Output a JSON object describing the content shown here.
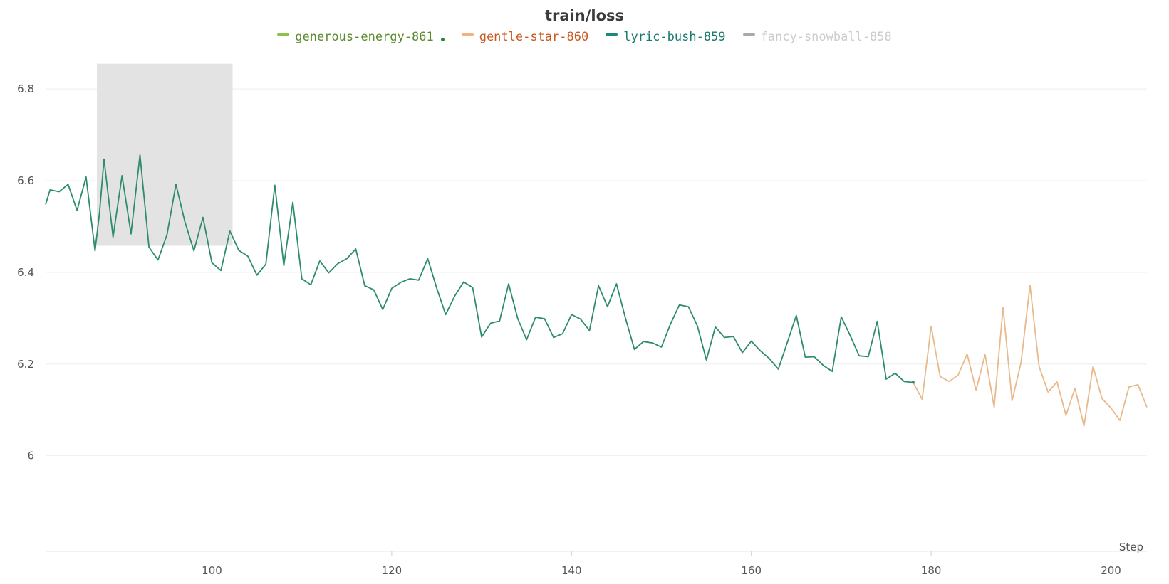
{
  "chart_data": {
    "type": "line",
    "title": "train/loss",
    "xlabel": "Step",
    "ylabel": "",
    "xlim": [
      81.5,
      204
    ],
    "ylim": [
      5.88,
      6.87
    ],
    "x_ticks": [
      100,
      120,
      140,
      160,
      180,
      200
    ],
    "y_ticks": [
      6,
      6.2,
      6.4,
      6.6,
      6.8
    ],
    "y_tick_labels": [
      "6",
      "6.2",
      "6.4",
      "6.6",
      "6.8"
    ],
    "x_tick_labels": [
      "100",
      "120",
      "140",
      "160",
      "180",
      "200"
    ],
    "grid": true,
    "legend_position": "top",
    "legend": [
      {
        "name": "generous-energy-861",
        "color": "#8bc34a",
        "text_color": "#5a8a2a",
        "marker": "dot",
        "marker_color": "#1e8c2e"
      },
      {
        "name": "gentle-star-860",
        "color": "#f4b183",
        "text_color": "#c9591f"
      },
      {
        "name": "lyric-bush-859",
        "color": "#1a8a7a",
        "text_color": "#1a7a6e"
      },
      {
        "name": "fancy-snowball-858",
        "color": "#aaaaaa",
        "text_color": "#cccccc"
      }
    ],
    "highlight_region": {
      "x": [
        87.2,
        102.3
      ],
      "y": [
        6.458,
        6.855
      ],
      "color": "#e3e3e3"
    },
    "series": [
      {
        "name": "lyric-bush-859",
        "color": "#2e8b6e",
        "x": [
          81.5,
          82,
          83,
          84,
          85,
          86,
          87,
          87.5,
          88,
          89,
          90,
          91,
          92,
          93,
          94,
          95,
          96,
          97,
          98,
          99,
          100,
          101,
          102,
          103,
          104,
          105,
          106,
          107,
          108,
          109,
          110,
          111,
          112,
          113,
          114,
          115,
          116,
          117,
          118,
          119,
          120,
          121,
          122,
          123,
          124,
          125,
          126,
          127,
          128,
          129,
          130,
          131,
          132,
          133,
          134,
          135,
          136,
          137,
          138,
          139,
          140,
          141,
          142,
          143,
          144,
          145,
          146,
          147,
          148,
          149,
          150,
          151,
          152,
          153,
          154,
          155,
          156,
          157,
          158,
          159,
          160,
          161,
          162,
          163,
          164,
          165,
          166,
          167,
          168,
          169,
          170,
          171,
          172,
          173,
          174,
          175,
          176,
          177,
          178
        ],
        "y": [
          6.548,
          6.58,
          6.576,
          6.592,
          6.535,
          6.608,
          6.447,
          6.53,
          6.647,
          6.477,
          6.611,
          6.484,
          6.656,
          6.455,
          6.427,
          6.482,
          6.592,
          6.51,
          6.447,
          6.52,
          6.421,
          6.404,
          6.49,
          6.448,
          6.435,
          6.394,
          6.418,
          6.59,
          6.415,
          6.553,
          6.386,
          6.373,
          6.425,
          6.399,
          6.419,
          6.43,
          6.451,
          6.371,
          6.362,
          6.319,
          6.365,
          6.378,
          6.386,
          6.383,
          6.43,
          6.366,
          6.308,
          6.348,
          6.379,
          6.367,
          6.259,
          6.289,
          6.294,
          6.375,
          6.3,
          6.253,
          6.302,
          6.299,
          6.258,
          6.266,
          6.308,
          6.298,
          6.273,
          6.371,
          6.325,
          6.375,
          6.3,
          6.232,
          6.249,
          6.246,
          6.237,
          6.287,
          6.329,
          6.325,
          6.283,
          6.209,
          6.281,
          6.258,
          6.26,
          6.225,
          6.25,
          6.229,
          6.212,
          6.189,
          6.247,
          6.306,
          6.215,
          6.216,
          6.197,
          6.184,
          6.303,
          6.262,
          6.218,
          6.216,
          6.293,
          6.167,
          6.18,
          6.162,
          6.16
        ]
      },
      {
        "name": "gentle-star-860",
        "color": "#e8b98a",
        "x": [
          178,
          179,
          180,
          181,
          182,
          183,
          184,
          185,
          186,
          187,
          188,
          189,
          190,
          191,
          192,
          193,
          194,
          195,
          196,
          197,
          198,
          199,
          200,
          201,
          202,
          203,
          204
        ],
        "y": [
          6.16,
          6.123,
          6.282,
          6.173,
          6.162,
          6.176,
          6.222,
          6.143,
          6.221,
          6.106,
          6.323,
          6.12,
          6.203,
          6.372,
          6.195,
          6.139,
          6.161,
          6.088,
          6.147,
          6.065,
          6.195,
          6.125,
          6.104,
          6.077,
          6.15,
          6.155,
          6.106
        ]
      }
    ]
  }
}
